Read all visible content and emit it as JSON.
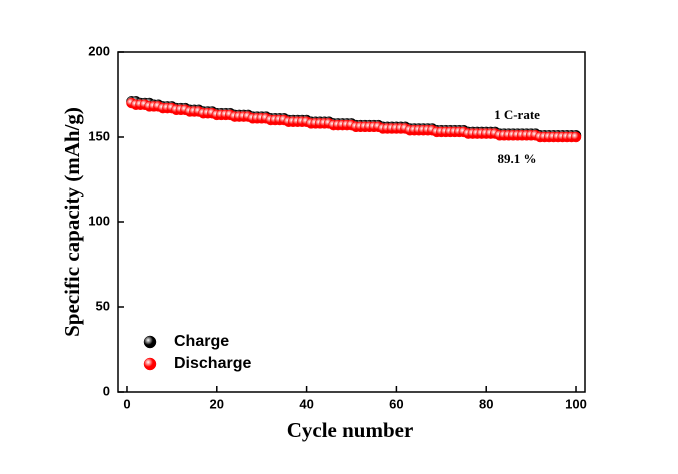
{
  "chart_data": {
    "type": "scatter",
    "x_label": "Cycle number",
    "y_label": "Specific capacity (mAh/g)",
    "annotations": [
      "1 C-rate",
      "89.1 %"
    ],
    "x": [
      1,
      2,
      3,
      4,
      5,
      6,
      7,
      8,
      9,
      10,
      11,
      12,
      13,
      14,
      15,
      16,
      17,
      18,
      19,
      20,
      21,
      22,
      23,
      24,
      25,
      26,
      27,
      28,
      29,
      30,
      31,
      32,
      33,
      34,
      35,
      36,
      37,
      38,
      39,
      40,
      41,
      42,
      43,
      44,
      45,
      46,
      47,
      48,
      49,
      50,
      51,
      52,
      53,
      54,
      55,
      56,
      57,
      58,
      59,
      60,
      61,
      62,
      63,
      64,
      65,
      66,
      67,
      68,
      69,
      70,
      71,
      72,
      73,
      74,
      75,
      76,
      77,
      78,
      79,
      80,
      81,
      82,
      83,
      84,
      85,
      86,
      87,
      88,
      89,
      90,
      91,
      92,
      93,
      94,
      95,
      96,
      97,
      98,
      99,
      100
    ],
    "series": [
      {
        "name": "Charge",
        "color": "#000000",
        "values": [
          171,
          171,
          170,
          170,
          170,
          169,
          169,
          168,
          168,
          168,
          167,
          167,
          167,
          166,
          166,
          166,
          165,
          165,
          165,
          164,
          164,
          164,
          164,
          163,
          163,
          163,
          163,
          162,
          162,
          162,
          162,
          161,
          161,
          161,
          161,
          160,
          160,
          160,
          160,
          160,
          159,
          159,
          159,
          159,
          159,
          158,
          158,
          158,
          158,
          158,
          157,
          157,
          157,
          157,
          157,
          157,
          156,
          156,
          156,
          156,
          156,
          156,
          155,
          155,
          155,
          155,
          155,
          155,
          154,
          154,
          154,
          154,
          154,
          154,
          154,
          153,
          153,
          153,
          153,
          153,
          153,
          153,
          152,
          152,
          152,
          152,
          152,
          152,
          152,
          152,
          152,
          151,
          151,
          151,
          151,
          151,
          151,
          151,
          151,
          151
        ]
      },
      {
        "name": "Discharge",
        "color": "#ff0000",
        "values": [
          170,
          169,
          169,
          169,
          168,
          168,
          168,
          167,
          167,
          167,
          166,
          166,
          166,
          165,
          165,
          165,
          164,
          164,
          164,
          163,
          163,
          163,
          163,
          162,
          162,
          162,
          162,
          161,
          161,
          161,
          161,
          160,
          160,
          160,
          160,
          159,
          159,
          159,
          159,
          159,
          158,
          158,
          158,
          158,
          158,
          157,
          157,
          157,
          157,
          157,
          156,
          156,
          156,
          156,
          156,
          156,
          155,
          155,
          155,
          155,
          155,
          155,
          154,
          154,
          154,
          154,
          154,
          154,
          153,
          153,
          153,
          153,
          153,
          153,
          153,
          152,
          152,
          152,
          152,
          152,
          152,
          152,
          151,
          151,
          151,
          151,
          151,
          151,
          151,
          151,
          151,
          150,
          150,
          150,
          150,
          150,
          150,
          150,
          150,
          150
        ]
      }
    ],
    "xlim": [
      -2,
      102
    ],
    "xticks": [
      0,
      20,
      40,
      60,
      80,
      100
    ],
    "ylim": [
      0,
      200
    ],
    "yticks": [
      0,
      50,
      100,
      150,
      200
    ],
    "legend": "lower left"
  }
}
